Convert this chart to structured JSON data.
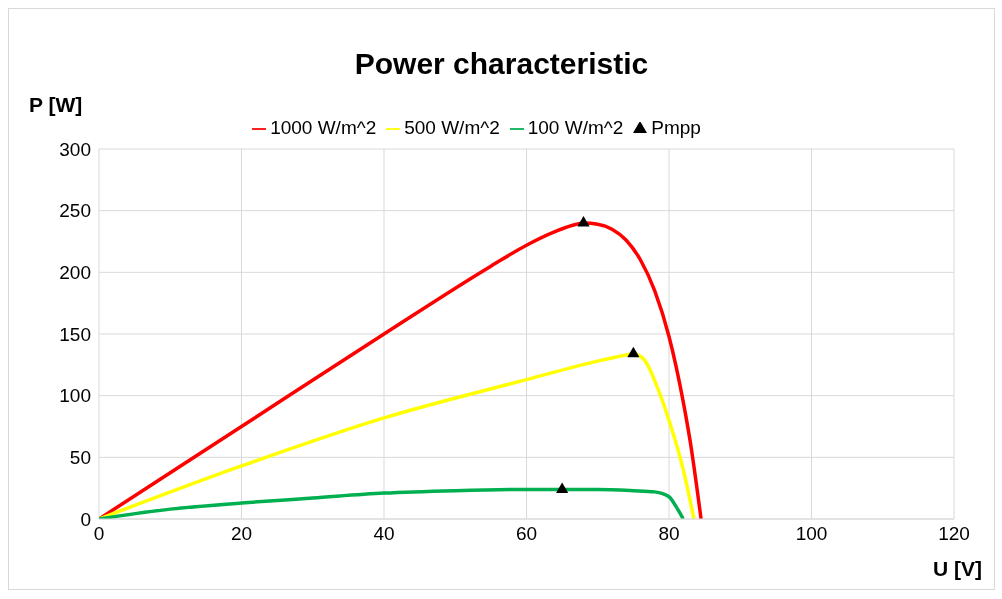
{
  "chart_data": {
    "type": "line",
    "title": "Power characteristic",
    "xlabel": "U [V]",
    "ylabel": "P [W]",
    "xlim": [
      0,
      120
    ],
    "xticks": [
      0,
      20,
      40,
      60,
      80,
      100,
      120
    ],
    "ylim": [
      0,
      300
    ],
    "yticks": [
      0,
      50,
      100,
      150,
      200,
      250,
      300
    ],
    "grid": true,
    "legend": "top",
    "series": [
      {
        "name": "1000 W/m^2",
        "color": "#ff0000",
        "x": [
          0,
          20,
          40,
          55,
          60,
          64,
          67,
          68,
          70,
          72,
          74,
          76,
          78,
          80,
          82,
          83,
          84.5
        ],
        "values": [
          0,
          75,
          150,
          205,
          222,
          233,
          239,
          240,
          239,
          235,
          226,
          210,
          185,
          148,
          95,
          62,
          0
        ]
      },
      {
        "name": "500 W/m^2",
        "color": "#ffff00",
        "x": [
          0,
          20,
          40,
          60,
          70,
          74,
          75,
          76,
          77,
          78,
          80,
          82,
          83.5
        ],
        "values": [
          0,
          43,
          82,
          113,
          128,
          133,
          134,
          132,
          125,
          112,
          80,
          40,
          0
        ]
      },
      {
        "name": "100 W/m^2",
        "color": "#00b050",
        "x": [
          0,
          10,
          20,
          30,
          40,
          50,
          60,
          65,
          70,
          75,
          78,
          80,
          81,
          82
        ],
        "values": [
          0,
          8,
          13,
          17,
          21,
          23,
          24,
          24,
          24,
          23,
          22,
          18,
          10,
          0
        ]
      },
      {
        "name": "Pmpp",
        "type": "scatter",
        "color": "#000000",
        "marker": "triangle",
        "x": [
          68,
          75,
          65
        ],
        "values": [
          240,
          134,
          24
        ]
      }
    ]
  }
}
